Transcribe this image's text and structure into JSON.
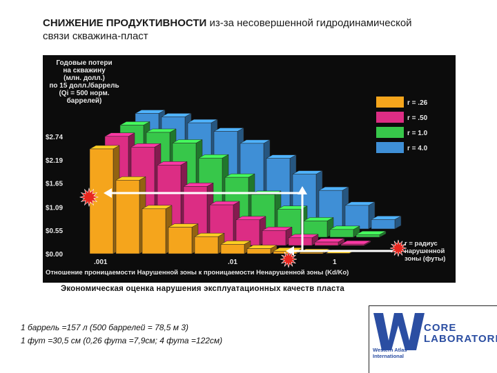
{
  "header": {
    "title_bold": "СНИЖЕНИЕ ПРОДУКТИВНОСТИ",
    "title_rest": "из-за несовершенной гидродинамической",
    "title_line2": "связи скважина-пласт"
  },
  "chart_data": {
    "type": "bar",
    "ylabel": "Годовые потери на скважину (млн. долл.) по 15 долл./баррель (Qi = 500 норм. баррелей)",
    "ylabel_lines": [
      "Годовые потери",
      "на скважину",
      "(млн. долл.)",
      "по 15 долл./баррель",
      "(Qi = 500 норм.",
      "баррелей)"
    ],
    "y_ticks": [
      "$2.74",
      "$2.19",
      "$1.65",
      "$1.09",
      "$0.55",
      "$0.00"
    ],
    "y_tick_values": [
      2.74,
      2.19,
      1.65,
      1.09,
      0.55,
      0.0
    ],
    "ylim": [
      0,
      2.74
    ],
    "x_ticks": [
      ".001",
      ".01",
      "1"
    ],
    "xlabel": "Отношение проницаемости Нарушенной зоны к проницаемости Ненарушенной зоны (Kd/Ko)",
    "depth_label": "r = радиус нарушенной зоны (футы)",
    "depth_label_lines": [
      "r = радиус",
      "нарушенной",
      "зоны (футы)"
    ],
    "series": [
      {
        "name": "r = .26",
        "color": "#f5a51c",
        "values": [
          2.45,
          1.72,
          1.05,
          0.62,
          0.4,
          0.22,
          0.12,
          0.06,
          0.03,
          0.01
        ]
      },
      {
        "name": "r = .50",
        "color": "#dc2d84",
        "values": [
          2.55,
          2.3,
          1.88,
          1.38,
          0.95,
          0.6,
          0.35,
          0.18,
          0.08,
          0.03
        ]
      },
      {
        "name": "r = 1.0",
        "color": "#37c74a",
        "values": [
          2.62,
          2.45,
          2.2,
          1.85,
          1.4,
          1.0,
          0.65,
          0.38,
          0.18,
          0.06
        ]
      },
      {
        "name": "r = 4.0",
        "color": "#3f8fd6",
        "values": [
          2.7,
          2.62,
          2.48,
          2.28,
          2.0,
          1.65,
          1.28,
          0.9,
          0.55,
          0.22
        ]
      }
    ]
  },
  "caption": "Экономическая оценка нарушения эксплуатационных качеств пласта",
  "notes": {
    "line1": "1 баррель =157 л  (500 баррелей  = 78,5 м 3)",
    "line2": "1 фут =30,5 см (0,26 фута =7,9см; 4 фута =122см)"
  },
  "logo": {
    "company": "CORE LABORATORIES",
    "company_lines": [
      "CORE",
      "LABORATORIES"
    ],
    "sub_lines": [
      "Western Atlas",
      "International"
    ],
    "small": "Western Atlas"
  }
}
